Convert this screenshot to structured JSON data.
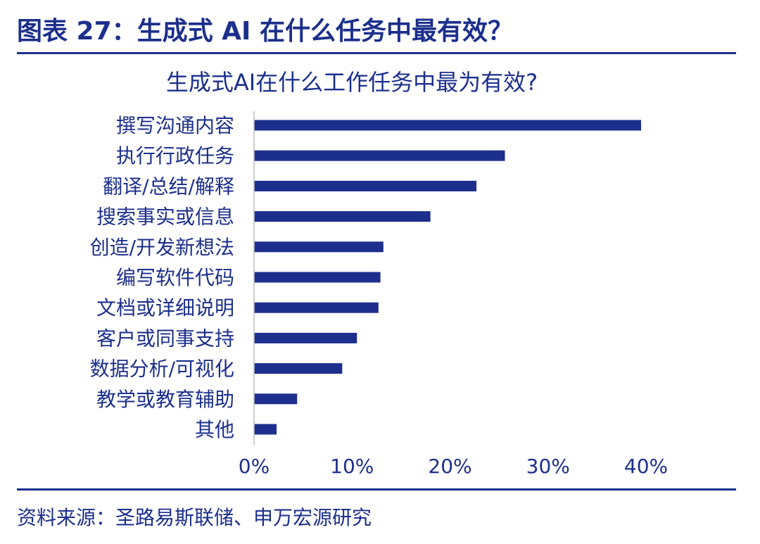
{
  "figure": {
    "title": "图表 27：生成式 AI 在什么任务中最有效？",
    "source": "资料来源：圣路易斯联储、申万宏源研究"
  },
  "colors": {
    "primary": "#1c2f8c",
    "axis": "#bfbfbf"
  },
  "chart_data": {
    "type": "bar",
    "orientation": "horizontal",
    "title": "生成式AI在什么工作任务中最为有效?",
    "categories": [
      "撰写沟通内容",
      "执行行政任务",
      "翻译/总结/解释",
      "搜索事实或信息",
      "创造/开发新想法",
      "编写软件代码",
      "文档或详细说明",
      "客户或同事支持",
      "数据分析/可视化",
      "教学或教育辅助",
      "其他"
    ],
    "values": [
      39.5,
      25.6,
      22.7,
      18.0,
      13.2,
      12.9,
      12.7,
      10.5,
      9.0,
      4.4,
      2.3
    ],
    "unit": "%",
    "xlim": [
      0,
      40
    ],
    "xticks": [
      "0%",
      "10%",
      "20%",
      "30%",
      "40%"
    ],
    "grid": false,
    "legend": "none"
  }
}
